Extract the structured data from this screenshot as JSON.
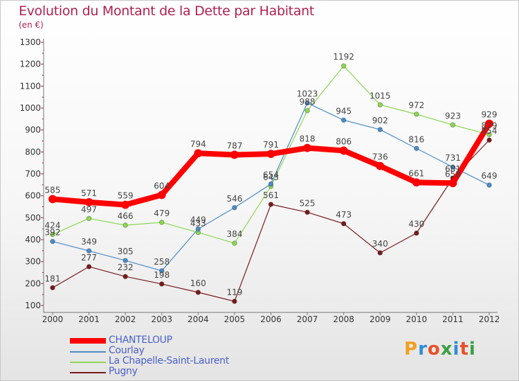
{
  "title": "Evolution du Montant de la Dette par Habitant",
  "unit": "(en €)",
  "logo": {
    "text": "Proxiti",
    "colors": [
      "#f0a020",
      "#2a8ed6",
      "#e8502a",
      "#3aa040",
      "#2a8ed6",
      "#e8502a",
      "#3aa040"
    ]
  },
  "chart_data": {
    "type": "line",
    "x": [
      "2000",
      "2001",
      "2002",
      "2003",
      "2004",
      "2005",
      "2006",
      "2007",
      "2008",
      "2009",
      "2010",
      "2011",
      "2012"
    ],
    "ylim": [
      100,
      1300
    ],
    "yticks": [
      100,
      200,
      300,
      400,
      500,
      600,
      700,
      800,
      900,
      1000,
      1100,
      1200,
      1300
    ],
    "grid": false,
    "legend_position": "bottom-left",
    "series": [
      {
        "name": "CHANTELOUP",
        "color": "#ff0000",
        "values": [
          585,
          571,
          559,
          604,
          794,
          787,
          791,
          818,
          806,
          736,
          661,
          658,
          929
        ]
      },
      {
        "name": "Courlay",
        "color": "#4a8cc8",
        "values": [
          392,
          349,
          305,
          258,
          449,
          546,
          654,
          1023,
          945,
          902,
          816,
          731,
          649
        ]
      },
      {
        "name": "La Chapelle-Saint-Laurent",
        "color": "#8cd850",
        "values": [
          424,
          497,
          466,
          479,
          433,
          384,
          643,
          988,
          1192,
          1015,
          972,
          923,
          879
        ]
      },
      {
        "name": "Pugny",
        "color": "#7a1a1a",
        "values": [
          181,
          277,
          232,
          198,
          160,
          119,
          561,
          525,
          473,
          340,
          430,
          681,
          854
        ]
      }
    ]
  }
}
